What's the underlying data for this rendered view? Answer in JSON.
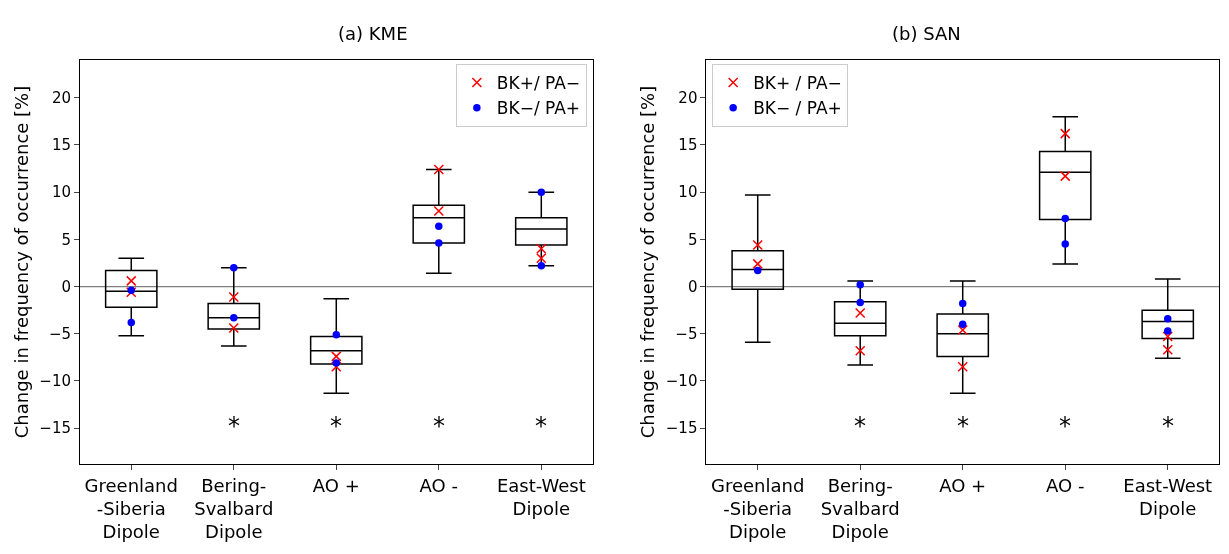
{
  "chart_data": [
    {
      "type": "box",
      "title": "(a) KME",
      "ylabel": "Change in frequency of occurrence [%]",
      "categories": [
        "Greenland\n-Siberia\nDipole",
        "Bering-\nSvalbard\nDipole",
        "AO +",
        "AO -",
        "East-West\nDipole"
      ],
      "color": "#000000",
      "boxes": [
        {
          "low": -5.2,
          "q1": -2.2,
          "median": -0.5,
          "q3": 1.7,
          "high": 3.0
        },
        {
          "low": -6.3,
          "q1": -4.5,
          "median": -3.3,
          "q3": -1.8,
          "high": 2.0
        },
        {
          "low": -11.3,
          "q1": -8.2,
          "median": -6.8,
          "q3": -5.3,
          "high": -1.3
        },
        {
          "low": 1.4,
          "q1": 4.6,
          "median": 7.3,
          "q3": 8.6,
          "high": 12.4
        },
        {
          "low": 2.2,
          "q1": 4.4,
          "median": 6.1,
          "q3": 7.3,
          "high": 10.0
        }
      ],
      "series": [
        {
          "type": "scatter",
          "name": "BK+/ PA−",
          "color": "#ff0000",
          "marker": "cross",
          "x": [
            "Greenland\n-Siberia\nDipole",
            "Greenland\n-Siberia\nDipole",
            "Bering-\nSvalbard\nDipole",
            "Bering-\nSvalbard\nDipole",
            "AO +",
            "AO +",
            "AO -",
            "AO -",
            "East-West\nDipole",
            "East-West\nDipole"
          ],
          "values": [
            0.6,
            -0.6,
            -1.1,
            -4.4,
            -7.4,
            -8.5,
            12.4,
            8.0,
            4.0,
            3.0
          ]
        },
        {
          "type": "scatter",
          "name": "BK−/ PA+",
          "color": "#0000ff",
          "marker": "circle",
          "x": [
            "Greenland\n-Siberia\nDipole",
            "Greenland\n-Siberia\nDipole",
            "Bering-\nSvalbard\nDipole",
            "Bering-\nSvalbard\nDipole",
            "AO +",
            "AO +",
            "AO -",
            "AO -",
            "East-West\nDipole",
            "East-West\nDipole"
          ],
          "values": [
            -0.4,
            -3.8,
            2.0,
            -3.3,
            -5.1,
            -8.1,
            6.4,
            4.6,
            10.0,
            2.2
          ]
        }
      ],
      "ylim": [
        -18.8,
        24
      ],
      "yticks": [
        -15,
        -10,
        -5,
        0,
        5,
        10,
        15,
        20
      ],
      "ref_lines": [
        {
          "axis": "y",
          "value": 0,
          "color": "#808080"
        }
      ],
      "annotations": [
        "*",
        "*",
        "*",
        "*"
      ],
      "legend": "top right",
      "grid": false
    },
    {
      "type": "box",
      "title": "(b) SAN",
      "ylabel": "Change in frequency of occurrence [%]",
      "categories": [
        "Greenland\n-Siberia\nDipole",
        "Bering-\nSvalbard\nDipole",
        "AO +",
        "AO -",
        "East-West\nDipole"
      ],
      "color": "#000000",
      "boxes": [
        {
          "low": -5.9,
          "q1": -0.3,
          "median": 1.8,
          "q3": 3.8,
          "high": 9.7
        },
        {
          "low": -8.3,
          "q1": -5.2,
          "median": -3.9,
          "q3": -1.6,
          "high": 0.6
        },
        {
          "low": -11.3,
          "q1": -7.4,
          "median": -5.0,
          "q3": -2.9,
          "high": 0.6
        },
        {
          "low": 2.4,
          "q1": 7.1,
          "median": 12.1,
          "q3": 14.3,
          "high": 18.0
        },
        {
          "low": -7.6,
          "q1": -5.5,
          "median": -3.7,
          "q3": -2.5,
          "high": 0.8
        }
      ],
      "series": [
        {
          "type": "scatter",
          "name": "BK+ / PA−",
          "color": "#ff0000",
          "marker": "cross",
          "x": [
            "Greenland\n-Siberia\nDipole",
            "Greenland\n-Siberia\nDipole",
            "Bering-\nSvalbard\nDipole",
            "Bering-\nSvalbard\nDipole",
            "AO +",
            "AO +",
            "AO -",
            "AO -",
            "East-West\nDipole",
            "East-West\nDipole"
          ],
          "values": [
            4.4,
            2.4,
            -2.8,
            -6.8,
            -4.6,
            -8.5,
            16.2,
            11.7,
            -5.3,
            -6.7
          ]
        },
        {
          "type": "scatter",
          "name": "BK− / PA+",
          "color": "#0000ff",
          "marker": "circle",
          "x": [
            "Greenland\n-Siberia\nDipole",
            "Bering-\nSvalbard\nDipole",
            "Bering-\nSvalbard\nDipole",
            "AO +",
            "AO +",
            "AO -",
            "AO -",
            "East-West\nDipole",
            "East-West\nDipole"
          ],
          "values": [
            1.7,
            0.2,
            -1.7,
            -1.8,
            -4.0,
            7.2,
            4.5,
            -3.4,
            -4.7
          ]
        }
      ],
      "ylim": [
        -18.8,
        24
      ],
      "yticks": [
        -15,
        -10,
        -5,
        0,
        5,
        10,
        15,
        20
      ],
      "ref_lines": [
        {
          "axis": "y",
          "value": 0,
          "color": "#808080"
        }
      ],
      "annotations": [
        "*",
        "*",
        "*",
        "*"
      ],
      "legend": "top left",
      "grid": false
    }
  ]
}
